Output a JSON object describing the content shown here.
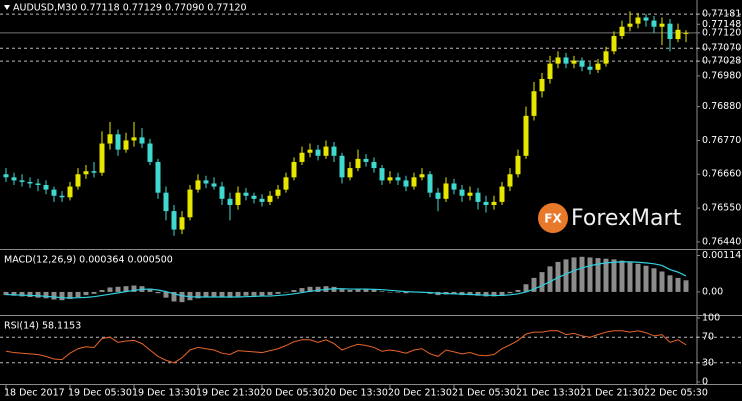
{
  "chart_data": [
    {
      "type": "candlestick",
      "title": "AUDUSD,M30  0.77118 0.77129 0.77090 0.77120",
      "up_color": "#e6e600",
      "down_color": "#3fd9d0",
      "ylim": [
        0.7642,
        0.77227
      ],
      "yticks": [
        0.77181,
        0.77148,
        {
          "value": 0.7712,
          "label": "0.77120"
        },
        {
          "value": 0.7707,
          "label": "0.77070"
        },
        0.77028,
        {
          "value": 0.7698,
          "label": "0.76980"
        },
        {
          "value": 0.7688,
          "label": "0.76880"
        },
        {
          "value": 0.7677,
          "label": "0.76770"
        },
        {
          "value": 0.7666,
          "label": "0.76660"
        },
        {
          "value": 0.7655,
          "label": "0.76550"
        },
        {
          "value": 0.7644,
          "label": "0.76440"
        }
      ],
      "dashed_levels": [
        0.77181,
        0.7707,
        0.77028
      ],
      "price_line": 0.7712,
      "xticks": [
        {
          "value": 0,
          "label": "18 Dec 2017"
        },
        {
          "value": 8,
          "label": "19 Dec 05:30"
        },
        {
          "value": 16,
          "label": "19 Dec 13:30"
        },
        {
          "value": 24,
          "label": "19 Dec 21:30"
        },
        {
          "value": 32,
          "label": "20 Dec 05:30"
        },
        {
          "value": 40,
          "label": "20 Dec 13:30"
        },
        {
          "value": 48,
          "label": "20 Dec 21:30"
        },
        {
          "value": 56,
          "label": "21 Dec 05:30"
        },
        {
          "value": 64,
          "label": "21 Dec 13:30"
        },
        {
          "value": 72,
          "label": "21 Dec 21:30"
        },
        {
          "value": 80,
          "label": "22 Dec 05:30"
        }
      ],
      "candles": [
        [
          0.7666,
          0.7668,
          0.76635,
          0.7665
        ],
        [
          0.7665,
          0.76665,
          0.76625,
          0.7664
        ],
        [
          0.7664,
          0.7666,
          0.7662,
          0.76635
        ],
        [
          0.76635,
          0.7665,
          0.76615,
          0.7663
        ],
        [
          0.7663,
          0.76645,
          0.76605,
          0.76625
        ],
        [
          0.76625,
          0.7664,
          0.76595,
          0.7661
        ],
        [
          0.7661,
          0.7662,
          0.7657,
          0.7659
        ],
        [
          0.7659,
          0.76605,
          0.7657,
          0.76585
        ],
        [
          0.76585,
          0.76635,
          0.76575,
          0.7662
        ],
        [
          0.7662,
          0.7668,
          0.7661,
          0.7666
        ],
        [
          0.7666,
          0.7669,
          0.76645,
          0.7667
        ],
        [
          0.7667,
          0.767,
          0.7665,
          0.76665
        ],
        [
          0.76665,
          0.768,
          0.76655,
          0.7676
        ],
        [
          0.7676,
          0.7683,
          0.7674,
          0.7679
        ],
        [
          0.7679,
          0.76805,
          0.7672,
          0.7674
        ],
        [
          0.7674,
          0.76795,
          0.7673,
          0.7677
        ],
        [
          0.7677,
          0.7683,
          0.7675,
          0.7678
        ],
        [
          0.7678,
          0.7681,
          0.76745,
          0.7676
        ],
        [
          0.7676,
          0.76775,
          0.7669,
          0.767
        ],
        [
          0.767,
          0.7671,
          0.7658,
          0.766
        ],
        [
          0.766,
          0.7662,
          0.7651,
          0.7654
        ],
        [
          0.7654,
          0.7656,
          0.7646,
          0.7648
        ],
        [
          0.7648,
          0.7654,
          0.76465,
          0.7652
        ],
        [
          0.7652,
          0.76625,
          0.7651,
          0.7661
        ],
        [
          0.7661,
          0.7666,
          0.766,
          0.7664
        ],
        [
          0.7664,
          0.76655,
          0.76615,
          0.7663
        ],
        [
          0.7663,
          0.7665,
          0.7661,
          0.7662
        ],
        [
          0.7662,
          0.76635,
          0.7656,
          0.7658
        ],
        [
          0.7658,
          0.766,
          0.7651,
          0.7656
        ],
        [
          0.7656,
          0.7662,
          0.76545,
          0.766
        ],
        [
          0.766,
          0.76615,
          0.76575,
          0.7659
        ],
        [
          0.7659,
          0.766,
          0.76565,
          0.7658
        ],
        [
          0.7658,
          0.76595,
          0.76555,
          0.7657
        ],
        [
          0.7657,
          0.76605,
          0.7656,
          0.7659
        ],
        [
          0.7659,
          0.76625,
          0.7658,
          0.7661
        ],
        [
          0.7661,
          0.76665,
          0.766,
          0.7665
        ],
        [
          0.7665,
          0.76715,
          0.7664,
          0.767
        ],
        [
          0.767,
          0.7675,
          0.7669,
          0.7673
        ],
        [
          0.7673,
          0.7676,
          0.76715,
          0.7674
        ],
        [
          0.7674,
          0.76755,
          0.76705,
          0.7672
        ],
        [
          0.7672,
          0.7677,
          0.7671,
          0.7675
        ],
        [
          0.7675,
          0.76765,
          0.767,
          0.7672
        ],
        [
          0.7672,
          0.7673,
          0.7663,
          0.7665
        ],
        [
          0.7665,
          0.767,
          0.7664,
          0.7668
        ],
        [
          0.7668,
          0.7674,
          0.7667,
          0.7671
        ],
        [
          0.7671,
          0.76725,
          0.76685,
          0.767
        ],
        [
          0.767,
          0.76715,
          0.76665,
          0.7668
        ],
        [
          0.7668,
          0.7669,
          0.76625,
          0.7664
        ],
        [
          0.7664,
          0.7667,
          0.7663,
          0.7665
        ],
        [
          0.7665,
          0.76665,
          0.76625,
          0.7664
        ],
        [
          0.7664,
          0.76655,
          0.76605,
          0.7662
        ],
        [
          0.7662,
          0.76665,
          0.7661,
          0.7665
        ],
        [
          0.7665,
          0.7668,
          0.7664,
          0.7666
        ],
        [
          0.7666,
          0.7667,
          0.76585,
          0.766
        ],
        [
          0.766,
          0.76615,
          0.7654,
          0.7658
        ],
        [
          0.7658,
          0.7665,
          0.7657,
          0.7663
        ],
        [
          0.7663,
          0.76645,
          0.76595,
          0.7661
        ],
        [
          0.7661,
          0.76625,
          0.7657,
          0.7659
        ],
        [
          0.7659,
          0.7662,
          0.76575,
          0.766
        ],
        [
          0.766,
          0.76615,
          0.76545,
          0.7657
        ],
        [
          0.7657,
          0.7659,
          0.76535,
          0.7656
        ],
        [
          0.7656,
          0.7659,
          0.76545,
          0.7657
        ],
        [
          0.7657,
          0.76635,
          0.7656,
          0.7662
        ],
        [
          0.7662,
          0.7668,
          0.76605,
          0.7666
        ],
        [
          0.7666,
          0.7674,
          0.7665,
          0.7672
        ],
        [
          0.7672,
          0.7688,
          0.7671,
          0.7685
        ],
        [
          0.7685,
          0.7696,
          0.76835,
          0.7693
        ],
        [
          0.7693,
          0.7699,
          0.7691,
          0.7697
        ],
        [
          0.7697,
          0.77045,
          0.76955,
          0.7702
        ],
        [
          0.7702,
          0.7706,
          0.77005,
          0.7704
        ],
        [
          0.7704,
          0.77055,
          0.77005,
          0.7702
        ],
        [
          0.7702,
          0.77045,
          0.77005,
          0.7703
        ],
        [
          0.7703,
          0.7704,
          0.76995,
          0.7701
        ],
        [
          0.7701,
          0.77025,
          0.76985,
          0.77
        ],
        [
          0.77,
          0.77035,
          0.7699,
          0.7702
        ],
        [
          0.7702,
          0.77075,
          0.7701,
          0.7706
        ],
        [
          0.7706,
          0.77125,
          0.7705,
          0.7711
        ],
        [
          0.7711,
          0.7716,
          0.771,
          0.7714
        ],
        [
          0.7714,
          0.7719,
          0.77125,
          0.7715
        ],
        [
          0.7715,
          0.77185,
          0.77135,
          0.7717
        ],
        [
          0.7717,
          0.77181,
          0.7714,
          0.7716
        ],
        [
          0.7716,
          0.77175,
          0.7712,
          0.7714
        ],
        [
          0.7714,
          0.7717,
          0.7708,
          0.7715
        ],
        [
          0.7715,
          0.77165,
          0.7706,
          0.771
        ],
        [
          0.771,
          0.7715,
          0.7709,
          0.7713
        ],
        [
          0.77118,
          0.77129,
          0.7709,
          0.7712
        ]
      ]
    },
    {
      "type": "macd",
      "title": "MACD(12,26,9) 0.000364 0.000500",
      "color": "#8c8c8c",
      "signal_color": "#2fd0e0",
      "ylim": [
        -0.00066,
        0.00125
      ],
      "yticks": [
        0.00114,
        {
          "value": 0,
          "label": "0.00"
        }
      ],
      "values": [
        -0.0001,
        -0.00012,
        -0.00014,
        -0.00016,
        -0.00018,
        -0.0002,
        -0.00024,
        -0.00026,
        -0.00022,
        -0.00016,
        -0.0001,
        -6e-05,
        6e-05,
        0.00014,
        0.00016,
        0.00018,
        0.0002,
        0.00018,
        0.0001,
        -4e-05,
        -0.00018,
        -0.0003,
        -0.00032,
        -0.00026,
        -0.0002,
        -0.00016,
        -0.00014,
        -0.00016,
        -0.00018,
        -0.00014,
        -0.00012,
        -0.00012,
        -0.00012,
        -0.0001,
        -6e-05,
        0,
        6e-05,
        0.00012,
        0.00016,
        0.00016,
        0.00018,
        0.00016,
        8e-05,
        6e-05,
        8e-05,
        8e-05,
        6e-05,
        2e-05,
        0,
        -2e-05,
        -4e-05,
        -2e-05,
        -2e-05,
        -6e-05,
        -0.0001,
        -8e-05,
        -8e-05,
        -0.0001,
        -0.0001,
        -0.00012,
        -0.00014,
        -0.00014,
        -0.0001,
        -4e-05,
        6e-05,
        0.00024,
        0.00044,
        0.00062,
        0.0008,
        0.00094,
        0.00102,
        0.00108,
        0.0011,
        0.00108,
        0.00106,
        0.00104,
        0.00102,
        0.00098,
        0.00092,
        0.00088,
        0.00082,
        0.00074,
        0.00064,
        0.00052,
        0.00044,
        0.000364
      ],
      "signal": [
        -8e-05,
        -9e-05,
        -0.0001,
        -0.00011,
        -0.00012,
        -0.00014,
        -0.00016,
        -0.00018,
        -0.00019,
        -0.00018,
        -0.00017,
        -0.00015,
        -0.00011,
        -7e-05,
        -3e-05,
        1e-05,
        5e-05,
        8e-05,
        9e-05,
        6e-05,
        1e-05,
        -6e-05,
        -0.00012,
        -0.00015,
        -0.00016,
        -0.00016,
        -0.00016,
        -0.00016,
        -0.00016,
        -0.00016,
        -0.00015,
        -0.00014,
        -0.00013,
        -0.00013,
        -0.00011,
        -9e-05,
        -6e-05,
        -2e-05,
        2e-05,
        5e-05,
        8e-05,
        0.0001,
        0.0001,
        9e-05,
        9e-05,
        9e-05,
        8e-05,
        7e-05,
        5e-05,
        3e-05,
        1e-05,
        0,
        -1e-05,
        -2e-05,
        -4e-05,
        -5e-05,
        -6e-05,
        -7e-05,
        -8e-05,
        -9e-05,
        -0.0001,
        -0.00011,
        -0.00011,
        -9e-05,
        -6e-05,
        0,
        9e-05,
        0.0002,
        0.00032,
        0.00045,
        0.00056,
        0.00067,
        0.00075,
        0.00082,
        0.00087,
        0.00091,
        0.00093,
        0.00094,
        0.00094,
        0.00093,
        0.00091,
        0.00088,
        0.00083,
        0.0007,
        0.00062,
        0.0005
      ]
    },
    {
      "type": "line",
      "title": "RSI(14) 58.1153",
      "color": "#e8642a",
      "ylim": [
        0,
        100
      ],
      "yticks": [
        100,
        70,
        30,
        0
      ],
      "dashed_levels": [
        70,
        30
      ],
      "values": [
        48,
        46,
        45,
        44,
        43,
        40,
        36,
        35,
        45,
        52,
        55,
        54,
        68,
        70,
        62,
        64,
        65,
        60,
        50,
        40,
        34,
        30,
        38,
        50,
        54,
        52,
        50,
        45,
        43,
        49,
        48,
        47,
        46,
        49,
        52,
        57,
        63,
        66,
        66,
        62,
        66,
        60,
        50,
        55,
        59,
        57,
        54,
        48,
        50,
        48,
        45,
        50,
        52,
        44,
        40,
        50,
        47,
        44,
        46,
        42,
        41,
        43,
        52,
        58,
        65,
        75,
        78,
        78,
        80,
        80,
        74,
        76,
        72,
        70,
        74,
        78,
        80,
        80,
        78,
        80,
        77,
        72,
        74,
        62,
        66,
        58.1153
      ]
    }
  ],
  "watermark": {
    "mark": "FX",
    "text": "ForexMart"
  }
}
